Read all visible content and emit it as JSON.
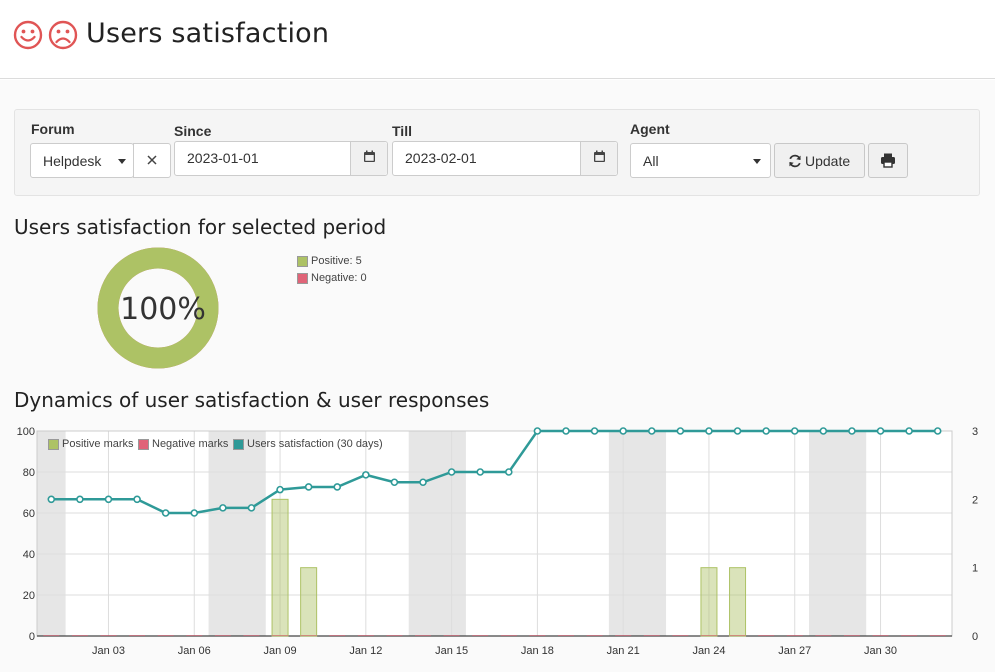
{
  "header": {
    "title": "Users satisfaction",
    "happy_icon": "happy-face-icon",
    "sad_icon": "sad-face-icon",
    "icon_color": "#e05555"
  },
  "filters": {
    "forum": {
      "label": "Forum",
      "value": "Helpdesk"
    },
    "since": {
      "label": "Since",
      "value": "2023-01-01"
    },
    "till": {
      "label": "Till",
      "value": "2023-02-01"
    },
    "agent": {
      "label": "Agent",
      "value": "All"
    },
    "update_label": "Update"
  },
  "summary": {
    "title": "Users satisfaction for selected period",
    "percent_text": "100%",
    "positive_fraction": 1.0,
    "legend": [
      {
        "label": "Positive: 5",
        "color": "#adc265"
      },
      {
        "label": "Negative: 0",
        "color": "#e06478"
      }
    ]
  },
  "dynamics": {
    "title": "Dynamics of user satisfaction & user responses"
  },
  "chart_data": {
    "type": "line",
    "title": "",
    "x": [
      "Jan 01",
      "Jan 02",
      "Jan 03",
      "Jan 04",
      "Jan 05",
      "Jan 06",
      "Jan 07",
      "Jan 08",
      "Jan 09",
      "Jan 10",
      "Jan 11",
      "Jan 12",
      "Jan 13",
      "Jan 14",
      "Jan 15",
      "Jan 16",
      "Jan 17",
      "Jan 18",
      "Jan 19",
      "Jan 20",
      "Jan 21",
      "Jan 22",
      "Jan 23",
      "Jan 24",
      "Jan 25",
      "Jan 26",
      "Jan 27",
      "Jan 28",
      "Jan 29",
      "Jan 30",
      "Jan 31",
      "Feb 01"
    ],
    "x_ticks": [
      "Jan 03",
      "Jan 06",
      "Jan 09",
      "Jan 12",
      "Jan 15",
      "Jan 18",
      "Jan 21",
      "Jan 24",
      "Jan 27",
      "Jan 30"
    ],
    "y_left": {
      "ticks": [
        0,
        20,
        40,
        60,
        80,
        100
      ],
      "range": [
        0,
        100
      ]
    },
    "y_right": {
      "ticks": [
        0,
        1,
        2,
        3
      ],
      "range": [
        0,
        3
      ]
    },
    "grid": true,
    "legend_position": "top-left",
    "weekends": [
      [
        "Jan 01",
        "Jan 01"
      ],
      [
        "Jan 07",
        "Jan 08"
      ],
      [
        "Jan 14",
        "Jan 15"
      ],
      [
        "Jan 21",
        "Jan 22"
      ],
      [
        "Jan 28",
        "Jan 29"
      ]
    ],
    "series": [
      {
        "name": "Positive marks",
        "type": "bar",
        "axis": "right",
        "color": "#adc265",
        "values": [
          0,
          0,
          0,
          0,
          0,
          0,
          0,
          0,
          2,
          1,
          0,
          0,
          0,
          0,
          0,
          0,
          0,
          0,
          0,
          0,
          0,
          0,
          0,
          1,
          1,
          0,
          0,
          0,
          0,
          0,
          0,
          0
        ]
      },
      {
        "name": "Negative marks",
        "type": "bar",
        "axis": "right",
        "color": "#e06478",
        "values": [
          0,
          0,
          0,
          0,
          0,
          0,
          0,
          0,
          0,
          0,
          0,
          0,
          0,
          0,
          0,
          0,
          0,
          0,
          0,
          0,
          0,
          0,
          0,
          0,
          0,
          0,
          0,
          0,
          0,
          0,
          0,
          0
        ]
      },
      {
        "name": "Users satisfaction (30 days)",
        "type": "line",
        "axis": "left",
        "color": "#2f9a98",
        "values": [
          66.7,
          66.7,
          66.7,
          66.7,
          60,
          60,
          62.5,
          62.5,
          71.4,
          72.7,
          72.7,
          78.6,
          75,
          75,
          80,
          80,
          80,
          100,
          100,
          100,
          100,
          100,
          100,
          100,
          100,
          100,
          100,
          100,
          100,
          100,
          100,
          100
        ]
      }
    ]
  }
}
